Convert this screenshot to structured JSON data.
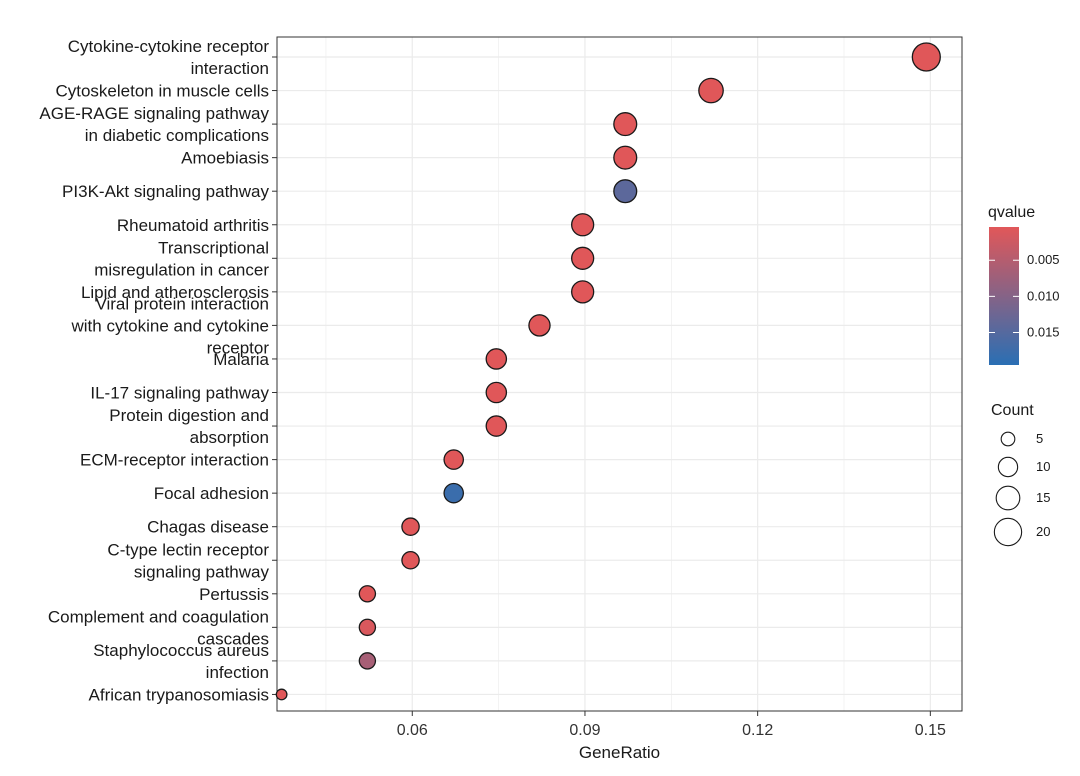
{
  "chart_data": {
    "type": "scatter",
    "subtype": "dot-plot",
    "xlabel": "GeneRatio",
    "ylabel": "",
    "xlim": [
      0.0365,
      0.1555
    ],
    "xticks": [
      0.06,
      0.09,
      0.12,
      0.15
    ],
    "xtick_labels": [
      "0.06",
      "0.09",
      "0.12",
      "0.15"
    ],
    "grid": true,
    "points": [
      {
        "label": [
          "Cytokine-cytokine receptor",
          "interaction"
        ],
        "x": 0.1493,
        "count": 21,
        "qvalue": 0.0005
      },
      {
        "label": [
          "Cytoskeleton in muscle cells"
        ],
        "x": 0.1119,
        "count": 16,
        "qvalue": 0.0005
      },
      {
        "label": [
          "AGE-RAGE signaling pathway",
          "in diabetic complications"
        ],
        "x": 0.097,
        "count": 14,
        "qvalue": 0.0005
      },
      {
        "label": [
          "Amoebiasis"
        ],
        "x": 0.097,
        "count": 14,
        "qvalue": 0.0005
      },
      {
        "label": [
          "PI3K-Akt signaling pathway"
        ],
        "x": 0.097,
        "count": 14,
        "qvalue": 0.0143
      },
      {
        "label": [
          "Rheumatoid arthritis"
        ],
        "x": 0.0896,
        "count": 13,
        "qvalue": 0.0005
      },
      {
        "label": [
          "Transcriptional",
          "misregulation in cancer"
        ],
        "x": 0.0896,
        "count": 13,
        "qvalue": 0.0005
      },
      {
        "label": [
          "Lipid and atherosclerosis"
        ],
        "x": 0.0896,
        "count": 13,
        "qvalue": 0.0005
      },
      {
        "label": [
          "Viral protein interaction",
          "with cytokine and cytokine",
          "receptor"
        ],
        "x": 0.0821,
        "count": 12,
        "qvalue": 0.0005
      },
      {
        "label": [
          "Malaria"
        ],
        "x": 0.0746,
        "count": 11,
        "qvalue": 0.0005
      },
      {
        "label": [
          "IL-17 signaling pathway"
        ],
        "x": 0.0746,
        "count": 11,
        "qvalue": 0.0005
      },
      {
        "label": [
          "Protein digestion and",
          "absorption"
        ],
        "x": 0.0746,
        "count": 11,
        "qvalue": 0.0005
      },
      {
        "label": [
          "ECM-receptor interaction"
        ],
        "x": 0.0672,
        "count": 10,
        "qvalue": 0.0005
      },
      {
        "label": [
          "Focal adhesion"
        ],
        "x": 0.0672,
        "count": 10,
        "qvalue": 0.0178
      },
      {
        "label": [
          "Chagas disease"
        ],
        "x": 0.0597,
        "count": 8,
        "qvalue": 0.0005
      },
      {
        "label": [
          "C-type lectin receptor",
          "signaling pathway"
        ],
        "x": 0.0597,
        "count": 8,
        "qvalue": 0.0005
      },
      {
        "label": [
          "Pertussis"
        ],
        "x": 0.0522,
        "count": 7,
        "qvalue": 0.0005
      },
      {
        "label": [
          "Complement and coagulation",
          "cascades"
        ],
        "x": 0.0522,
        "count": 7,
        "qvalue": 0.0012
      },
      {
        "label": [
          "Staphylococcus aureus",
          "infection"
        ],
        "x": 0.0522,
        "count": 7,
        "qvalue": 0.0065
      },
      {
        "label": [
          "African trypanosomiasis"
        ],
        "x": 0.0373,
        "count": 3,
        "qvalue": 0.0005
      }
    ],
    "legend": {
      "color": {
        "title": "qvalue",
        "breaks": [
          0.005,
          0.01,
          0.015
        ],
        "labels": [
          "0.005",
          "0.010",
          "0.015"
        ],
        "range": [
          0.0004,
          0.0195
        ],
        "low_color": "#e15759",
        "high_color": "#2a6fb4"
      },
      "size": {
        "title": "Count",
        "breaks": [
          5,
          10,
          15,
          20
        ],
        "labels": [
          "5",
          "10",
          "15",
          "20"
        ]
      }
    }
  }
}
